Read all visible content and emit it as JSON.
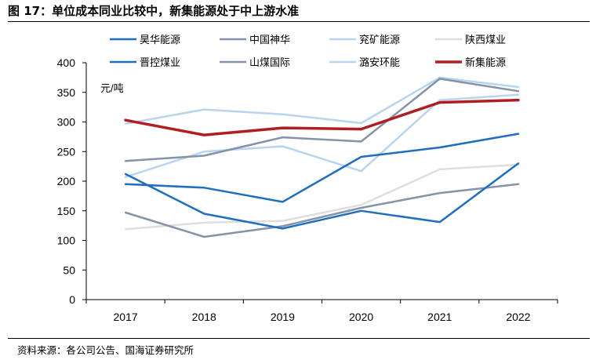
{
  "figure": {
    "title": "图 17：单位成本同业比较中，新集能源处于中上游水准",
    "source": "资料来源：各公司公告、国海证券研究所"
  },
  "chart_data": {
    "type": "line",
    "title": "",
    "unit_label": "元/吨",
    "xlabel": "",
    "ylabel": "",
    "x": [
      "2017",
      "2018",
      "2019",
      "2020",
      "2021",
      "2022"
    ],
    "ylim": [
      0,
      400
    ],
    "yticks": [
      0,
      50,
      100,
      150,
      200,
      250,
      300,
      350,
      400
    ],
    "grid": false,
    "legend": "top",
    "series": [
      {
        "name": "昊华能源",
        "color": "#1f6fbf",
        "width": 2.5,
        "values": [
          212,
          145,
          120,
          150,
          131,
          230
        ]
      },
      {
        "name": "中国神华",
        "color": "#8593a9",
        "width": 2.5,
        "values": [
          234,
          243,
          274,
          267,
          373,
          352
        ]
      },
      {
        "name": "兖矿能源",
        "color": "#b8d4ef",
        "width": 2.5,
        "values": [
          207,
          250,
          259,
          217,
          337,
          346
        ]
      },
      {
        "name": "陕西煤业",
        "color": "#dedede",
        "width": 2.5,
        "values": [
          119,
          130,
          133,
          160,
          220,
          228
        ]
      },
      {
        "name": "晋控煤业",
        "color": "#1f6fbf",
        "width": 2.5,
        "values": [
          195,
          189,
          165,
          241,
          257,
          280
        ]
      },
      {
        "name": "山煤国际",
        "color": "#8593a9",
        "width": 2.5,
        "values": [
          147,
          106,
          124,
          155,
          180,
          195
        ]
      },
      {
        "name": "潞安环能",
        "color": "#b8d4ef",
        "width": 2.5,
        "values": [
          297,
          321,
          313,
          298,
          375,
          359
        ]
      },
      {
        "name": "新集能源",
        "color": "#b01e23",
        "width": 3.5,
        "values": [
          303,
          278,
          290,
          288,
          333,
          337
        ]
      }
    ]
  }
}
